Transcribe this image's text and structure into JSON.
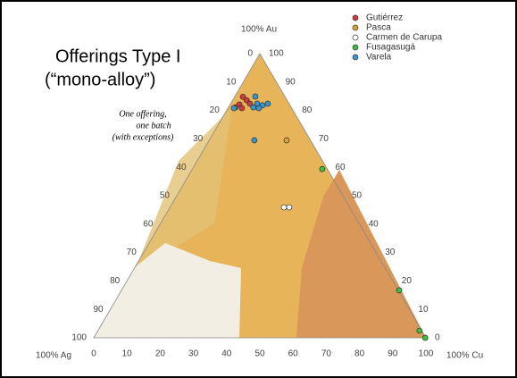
{
  "chart_data": {
    "type": "ternary",
    "title": "Offerings Type I",
    "subtitle": "(“mono-alloy”)",
    "annotation": [
      "One offering,",
      "one batch",
      "(with exceptions)"
    ],
    "axis_labels": {
      "top": "100% Au",
      "left": "100% Ag",
      "right": "100% Cu"
    },
    "ag_ticks": [
      0,
      10,
      20,
      30,
      40,
      50,
      60,
      70,
      80,
      90,
      100
    ],
    "au_ticks": [
      0,
      10,
      20,
      30,
      40,
      50,
      60,
      70,
      80,
      90,
      100
    ],
    "cu_ticks": [
      0,
      10,
      20,
      30,
      40,
      50,
      60,
      70,
      80,
      90,
      100
    ],
    "series": [
      {
        "name": "Gutiérrez",
        "color": "#d03a3a",
        "x": [
          2.8,
          2.5,
          4.2,
          4.2,
          2.1,
          5.8
        ],
        "values": [
          82.1,
          84.8,
          83.6,
          80.8,
          81.1,
          82.4
        ]
      },
      {
        "name": "Pasca",
        "color": "#e0a030",
        "x": [
          23.3
        ],
        "values": [
          69.5
        ]
      },
      {
        "name": "Carmen de Carupa",
        "color": "#ffffff",
        "x": [
          34.3,
          35.9
        ],
        "values": [
          45.9,
          45.9
        ]
      },
      {
        "name": "Fusagasugá",
        "color": "#3fbf3f",
        "x": [
          39.1,
          83.6,
          96.8,
          99.8
        ],
        "values": [
          59.4,
          16.7,
          2.5,
          0
        ]
      },
      {
        "name": "Varela",
        "color": "#3399cc",
        "x": [
          1.8,
          6.2,
          8.0,
          9.9,
          11.2,
          7.5,
          9.3,
          13.6
        ],
        "values": [
          80.8,
          84.9,
          82.4,
          81.8,
          82.4,
          81.1,
          80.8,
          69.5
        ]
      }
    ]
  }
}
